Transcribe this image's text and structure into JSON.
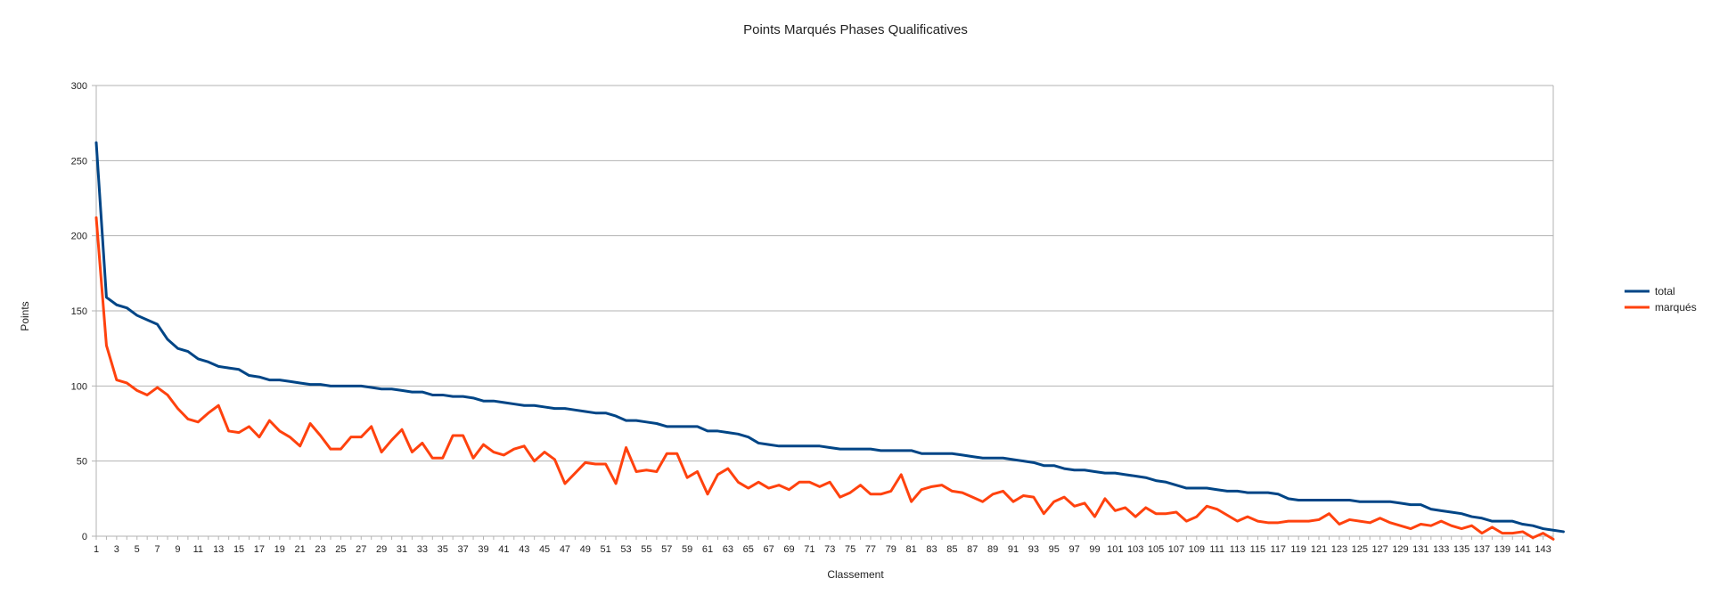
{
  "chart_data": {
    "type": "line",
    "title": "Points Marqués Phases Qualificatives",
    "xlabel": "Classement",
    "ylabel": "Points",
    "xlim": [
      1,
      144
    ],
    "ylim": [
      0,
      300
    ],
    "y_ticks": [
      0,
      50,
      100,
      150,
      200,
      250,
      300
    ],
    "x_ticks": [
      1,
      3,
      5,
      7,
      9,
      11,
      13,
      15,
      17,
      19,
      21,
      23,
      25,
      27,
      29,
      31,
      33,
      35,
      37,
      39,
      41,
      43,
      45,
      47,
      49,
      51,
      53,
      55,
      57,
      59,
      61,
      63,
      65,
      67,
      69,
      71,
      73,
      75,
      77,
      79,
      81,
      83,
      85,
      87,
      89,
      91,
      93,
      95,
      97,
      99,
      101,
      103,
      105,
      107,
      109,
      111,
      113,
      115,
      117,
      119,
      121,
      123,
      125,
      127,
      129,
      131,
      133,
      135,
      137,
      139,
      141,
      143
    ],
    "grid": "horizontal",
    "legend_position": "right",
    "series": [
      {
        "name": "total",
        "color": "#004586",
        "values": [
          262,
          159,
          154,
          152,
          147,
          144,
          141,
          131,
          125,
          123,
          118,
          116,
          113,
          112,
          111,
          107,
          106,
          104,
          104,
          103,
          102,
          101,
          101,
          100,
          100,
          100,
          100,
          99,
          98,
          98,
          97,
          96,
          96,
          94,
          94,
          93,
          93,
          92,
          90,
          90,
          89,
          88,
          87,
          87,
          86,
          85,
          85,
          84,
          83,
          82,
          82,
          80,
          77,
          77,
          76,
          75,
          73,
          73,
          73,
          73,
          70,
          70,
          69,
          68,
          66,
          62,
          61,
          60,
          60,
          60,
          60,
          60,
          59,
          58,
          58,
          58,
          58,
          57,
          57,
          57,
          57,
          55,
          55,
          55,
          55,
          54,
          53,
          52,
          52,
          52,
          51,
          50,
          49,
          47,
          47,
          45,
          44,
          44,
          43,
          42,
          42,
          41,
          40,
          39,
          37,
          36,
          34,
          32,
          32,
          32,
          31,
          30,
          30,
          29,
          29,
          29,
          28,
          25,
          24,
          24,
          24,
          24,
          24,
          24,
          23,
          23,
          23,
          23,
          22,
          21,
          21,
          18,
          17,
          16,
          15,
          13,
          12,
          10,
          10,
          10,
          8,
          7,
          5,
          4,
          3
        ]
      },
      {
        "name": "marqués",
        "color": "#ff420e",
        "values": [
          212,
          127,
          104,
          102,
          97,
          94,
          99,
          94,
          85,
          78,
          76,
          82,
          87,
          70,
          69,
          73,
          66,
          77,
          70,
          66,
          60,
          75,
          67,
          58,
          58,
          66,
          66,
          73,
          56,
          64,
          71,
          56,
          62,
          52,
          52,
          67,
          67,
          52,
          61,
          56,
          54,
          58,
          60,
          50,
          56,
          51,
          35,
          42,
          49,
          48,
          48,
          35,
          59,
          43,
          44,
          43,
          55,
          55,
          39,
          43,
          28,
          41,
          45,
          36,
          32,
          36,
          32,
          34,
          31,
          36,
          36,
          33,
          36,
          26,
          29,
          34,
          28,
          28,
          30,
          41,
          23,
          31,
          33,
          34,
          30,
          29,
          26,
          23,
          28,
          30,
          23,
          27,
          26,
          15,
          23,
          26,
          20,
          22,
          13,
          25,
          17,
          19,
          13,
          19,
          15,
          15,
          16,
          10,
          13,
          20,
          18,
          14,
          10,
          13,
          10,
          9,
          9,
          10,
          10,
          10,
          11,
          15,
          8,
          11,
          10,
          9,
          12,
          9,
          7,
          5,
          8,
          7,
          10,
          7,
          5,
          7,
          2,
          6,
          2,
          2,
          3,
          -1,
          2,
          -2
        ]
      }
    ]
  }
}
